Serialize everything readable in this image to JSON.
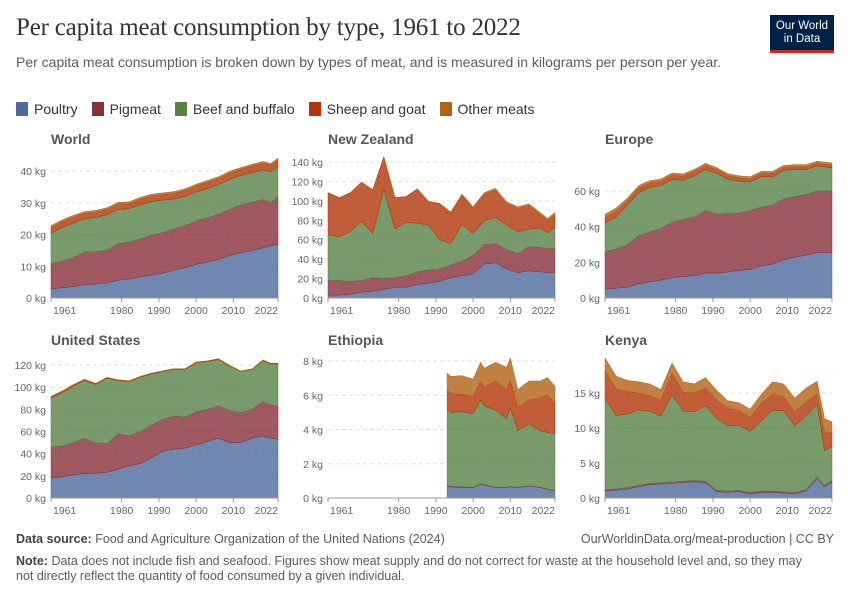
{
  "header": {
    "title": "Per capita meat consumption by type, 1961 to 2022",
    "subtitle": "Per capita meat consumption is broken down by types of meat, and is measured in kilograms per person per year.",
    "logo_text": "Our World in Data"
  },
  "footer": {
    "source_label": "Data source:",
    "source_text": "Food and Agriculture Organization of the United Nations (2024)",
    "url": "OurWorldinData.org/meat-production | CC BY",
    "note_label": "Note:",
    "note_text": "Data does not include fish and seafood. Figures show meat supply and do not correct for waste at the household level and, so they may not directly reflect the quantity of food consumed by a given individual."
  },
  "colors": {
    "Poultry": "#4c6a9c",
    "Pigmeat": "#883039",
    "Beef and buffalo": "#578145",
    "Sheep and goat": "#b13507",
    "Other meats": "#b16214"
  },
  "chart_data": {
    "type": "area",
    "stacked": true,
    "unit": "kg",
    "legend": [
      "Poultry",
      "Pigmeat",
      "Beef and buffalo",
      "Sheep and goat",
      "Other meats"
    ],
    "legend_placement": "top-left",
    "xlim": [
      1961,
      2022
    ],
    "x_ticks": [
      1961,
      1980,
      1990,
      2000,
      2010,
      2022
    ],
    "grid": "horizontal dashed",
    "panels": [
      {
        "title": "World",
        "y_ticks": [
          0,
          10,
          20,
          30,
          40
        ],
        "years": [
          1961,
          1964,
          1967,
          1970,
          1973,
          1976,
          1979,
          1982,
          1985,
          1988,
          1991,
          1994,
          1997,
          2000,
          2003,
          2006,
          2009,
          2012,
          2015,
          2018,
          2020,
          2022
        ],
        "series": [
          {
            "name": "Poultry",
            "values": [
              2.9,
              3.2,
              3.6,
              4.2,
              4.4,
              4.8,
              5.6,
              6.0,
              6.6,
              7.2,
              7.8,
              8.8,
              9.6,
              10.6,
              11.3,
              12.2,
              13.4,
              14.3,
              15.0,
              15.8,
              16.5,
              16.9
            ]
          },
          {
            "name": "Pigmeat",
            "values": [
              7.9,
              8.5,
              9.2,
              10.2,
              10.2,
              10.2,
              11.5,
              11.6,
              12.0,
              12.6,
              12.8,
              13.0,
              13.2,
              13.6,
              14.0,
              14.2,
              14.6,
              15.0,
              15.2,
              15.2,
              13.5,
              15.0
            ]
          },
          {
            "name": "Beef and buffalo",
            "values": [
              9.5,
              10.5,
              10.8,
              10.5,
              10.8,
              11.2,
              10.8,
              10.5,
              10.8,
              10.6,
              10.2,
              9.4,
              9.2,
              9.2,
              9.2,
              9.3,
              9.4,
              9.3,
              9.3,
              9.4,
              9.8,
              9.4
            ]
          },
          {
            "name": "Sheep and goat",
            "values": [
              1.8,
              1.8,
              1.8,
              1.7,
              1.6,
              1.6,
              1.6,
              1.6,
              1.7,
              1.7,
              1.7,
              1.7,
              1.8,
              1.8,
              1.9,
              1.9,
              1.9,
              1.9,
              2.0,
              2.0,
              2.0,
              2.1
            ]
          },
          {
            "name": "Other meats",
            "values": [
              0.7,
              0.6,
              0.6,
              0.6,
              0.6,
              0.6,
              0.6,
              0.6,
              0.6,
              0.6,
              0.6,
              0.6,
              0.6,
              0.6,
              0.6,
              0.6,
              0.6,
              0.6,
              0.6,
              0.6,
              0.6,
              0.6
            ]
          }
        ]
      },
      {
        "title": "New Zealand",
        "y_ticks": [
          0,
          20,
          40,
          60,
          80,
          100,
          120,
          140
        ],
        "years": [
          1961,
          1964,
          1967,
          1970,
          1973,
          1976,
          1979,
          1982,
          1985,
          1988,
          1991,
          1994,
          1997,
          2000,
          2003,
          2006,
          2009,
          2012,
          2015,
          2018,
          2020,
          2022
        ],
        "series": [
          {
            "name": "Poultry",
            "values": [
              3,
              3,
              4,
              6,
              7,
              9,
              11,
              11,
              14,
              15,
              17,
              21,
              23,
              25,
              35,
              36,
              30,
              26,
              28,
              27,
              26,
              26
            ]
          },
          {
            "name": "Pigmeat",
            "values": [
              15,
              15,
              13,
              12,
              14,
              11,
              10,
              12,
              13,
              14,
              13,
              13,
              15,
              19,
              20,
              20,
              20,
              20,
              25,
              25,
              25,
              25
            ]
          },
          {
            "name": "Beef and buffalo",
            "values": [
              47,
              45,
              51,
              61,
              45,
              92,
              50,
              55,
              50,
              46,
              30,
              22,
              38,
              22,
              25,
              27,
              25,
              22,
              18,
              20,
              16,
              22
            ]
          },
          {
            "name": "Sheep and goat",
            "values": [
              43,
              40,
              40,
              40,
              45,
              33,
              32,
              26,
              35,
              24,
              37,
              32,
              30,
              27,
              27,
              28,
              22,
              24,
              24,
              14,
              13,
              13
            ]
          },
          {
            "name": "Other meats",
            "values": [
              0.5,
              0.5,
              0.5,
              0.5,
              0.5,
              0.5,
              0.5,
              0.5,
              0.5,
              0.5,
              0.5,
              0.5,
              1,
              1,
              1.5,
              2,
              2,
              2,
              2,
              2,
              2,
              2
            ]
          }
        ]
      },
      {
        "title": "Europe",
        "y_ticks": [
          0,
          20,
          40,
          60
        ],
        "years": [
          1961,
          1964,
          1967,
          1970,
          1973,
          1976,
          1979,
          1982,
          1985,
          1988,
          1991,
          1994,
          1997,
          2000,
          2003,
          2006,
          2009,
          2012,
          2015,
          2018,
          2020,
          2022
        ],
        "series": [
          {
            "name": "Poultry",
            "values": [
              5,
              5.5,
              6,
              8,
              9,
              10,
              11.5,
              12,
              12.5,
              14,
              14,
              14.5,
              15.5,
              16,
              18,
              19,
              21.5,
              23,
              24,
              25.5,
              25.5,
              25.5
            ]
          },
          {
            "name": "Pigmeat",
            "values": [
              21,
              22,
              24,
              27,
              28,
              29,
              31,
              32,
              33,
              35,
              33,
              33,
              32,
              33,
              33,
              33,
              34,
              34,
              34,
              34.5,
              34.5,
              34.5
            ]
          },
          {
            "name": "Beef and buffalo",
            "values": [
              16,
              18,
              22,
              24,
              25,
              24,
              24,
              22,
              23,
              23,
              23,
              19,
              18,
              16,
              17,
              16,
              16,
              15,
              14,
              14,
              13.5,
              13
            ]
          },
          {
            "name": "Sheep and goat",
            "values": [
              3,
              3,
              2.5,
              2.5,
              2.3,
              2.3,
              2.3,
              2.3,
              2.3,
              2.3,
              2,
              2,
              1.8,
              1.8,
              1.8,
              1.8,
              1.6,
              1.6,
              1.6,
              1.5,
              1.5,
              1.5
            ]
          },
          {
            "name": "Other meats",
            "values": [
              2,
              2,
              1.5,
              1.5,
              1.5,
              1.4,
              1.3,
              1.3,
              1.3,
              1.3,
              1.2,
              1.2,
              1.2,
              1.2,
              1.2,
              1.2,
              1.2,
              1.2,
              1.2,
              1.2,
              1.2,
              1.2
            ]
          }
        ]
      },
      {
        "title": "United States",
        "y_ticks": [
          0,
          20,
          40,
          60,
          80,
          100,
          120
        ],
        "years": [
          1961,
          1964,
          1967,
          1970,
          1973,
          1976,
          1979,
          1982,
          1985,
          1988,
          1991,
          1994,
          1997,
          2000,
          2003,
          2006,
          2009,
          2012,
          2015,
          2018,
          2020,
          2022
        ],
        "series": [
          {
            "name": "Poultry",
            "values": [
              18,
              19,
              21,
              22,
              22.5,
              23,
              26,
              29,
              31,
              36,
              42,
              44,
              45,
              48,
              51,
              54,
              50,
              50,
              54,
              56,
              54,
              53
            ]
          },
          {
            "name": "Pigmeat",
            "values": [
              28,
              28,
              29,
              32,
              27,
              26,
              32,
              27,
              29,
              30,
              29,
              30,
              28,
              30,
              29,
              29,
              29,
              27,
              26,
              31,
              30,
              30
            ]
          },
          {
            "name": "Beef and buffalo",
            "values": [
              44,
              48,
              51,
              52,
              53,
              59,
              48,
              49,
              49,
              46,
              43,
              42,
              43,
              44,
              43,
              42,
              40,
              37,
              36,
              37,
              37,
              38
            ]
          },
          {
            "name": "Sheep and goat",
            "values": [
              1.5,
              1.3,
              1.0,
              0.9,
              0.7,
              0.6,
              0.5,
              0.5,
              0.5,
              0.5,
              0.5,
              0.5,
              0.5,
              0.5,
              0.5,
              0.5,
              0.5,
              0.4,
              0.4,
              0.4,
              0.4,
              0.4
            ]
          },
          {
            "name": "Other meats",
            "values": [
              0.3,
              0.3,
              0.3,
              0.3,
              0.2,
              0.2,
              0.2,
              0.2,
              0.2,
              0.2,
              0.2,
              0.2,
              0.2,
              0.2,
              0.2,
              0.2,
              0.2,
              0.2,
              0.2,
              0.2,
              0.2,
              0.2
            ]
          }
        ]
      },
      {
        "title": "Ethiopia",
        "y_ticks": [
          0,
          2,
          4,
          6,
          8
        ],
        "years": [
          1993,
          1994,
          1997,
          2000,
          2002,
          2003,
          2006,
          2009,
          2010,
          2012,
          2015,
          2018,
          2020,
          2022
        ],
        "series": [
          {
            "name": "Poultry",
            "values": [
              0.7,
              0.65,
              0.6,
              0.6,
              0.8,
              0.75,
              0.6,
              0.6,
              0.65,
              0.6,
              0.7,
              0.6,
              0.5,
              0.4
            ]
          },
          {
            "name": "Pigmeat",
            "values": [
              0.05,
              0.05,
              0.05,
              0.03,
              0.03,
              0.03,
              0.03,
              0.03,
              0.03,
              0.03,
              0.03,
              0.03,
              0.03,
              0.03
            ]
          },
          {
            "name": "Beef and buffalo",
            "values": [
              4.4,
              4.3,
              4.4,
              4.3,
              4.9,
              4.6,
              4.5,
              4.0,
              4.6,
              3.3,
              3.6,
              3.3,
              3.3,
              3.3
            ]
          },
          {
            "name": "Sheep and goat",
            "values": [
              1.15,
              1.1,
              1.0,
              1.0,
              1.1,
              1.1,
              1.7,
              1.7,
              1.6,
              1.4,
              1.4,
              1.9,
              2.2,
              1.8
            ]
          },
          {
            "name": "Other meats",
            "values": [
              1.0,
              1.0,
              1.1,
              1.0,
              1.1,
              1.1,
              1.1,
              1.3,
              1.3,
              1.0,
              1.1,
              1.0,
              1.0,
              1.0
            ]
          }
        ]
      },
      {
        "title": "Kenya",
        "y_ticks": [
          0,
          5,
          10,
          15
        ],
        "years": [
          1961,
          1964,
          1967,
          1970,
          1973,
          1976,
          1979,
          1982,
          1985,
          1988,
          1991,
          1994,
          1997,
          2000,
          2003,
          2006,
          2009,
          2012,
          2015,
          2018,
          2020,
          2022
        ],
        "series": [
          {
            "name": "Poultry",
            "values": [
              1.0,
              1.1,
              1.3,
              1.6,
              1.9,
              2.0,
              2.1,
              2.2,
              2.3,
              2.2,
              0.9,
              0.8,
              0.9,
              0.6,
              0.8,
              0.8,
              0.7,
              0.6,
              1.0,
              2.8,
              1.6,
              2.3
            ]
          },
          {
            "name": "Pigmeat",
            "values": [
              0.2,
              0.2,
              0.2,
              0.2,
              0.2,
              0.2,
              0.2,
              0.2,
              0.2,
              0.2,
              0.2,
              0.2,
              0.2,
              0.2,
              0.2,
              0.2,
              0.2,
              0.2,
              0.2,
              0.2,
              0.2,
              0.2
            ]
          },
          {
            "name": "Beef and buffalo",
            "values": [
              13,
              10.5,
              10.5,
              10.8,
              10.3,
              9.5,
              12.5,
              10.0,
              9.8,
              10.8,
              10.3,
              9.3,
              9.3,
              8.7,
              10.0,
              11.5,
              11.6,
              9.5,
              10.5,
              10.4,
              5.0,
              4.8
            ]
          },
          {
            "name": "Sheep and goat",
            "values": [
              4,
              3.8,
              3.2,
              2.4,
              2.2,
              2.3,
              3.0,
              2.7,
              2.7,
              2.5,
              2.6,
              2.5,
              2.1,
              2.0,
              2.5,
              2.3,
              2.0,
              2.0,
              2.0,
              1.5,
              2.5,
              2.0
            ]
          },
          {
            "name": "Other meats",
            "values": [
              1.8,
              1.8,
              1.6,
              1.6,
              1.7,
              1.5,
              1.5,
              1.5,
              1.3,
              1.5,
              1.4,
              1.1,
              1.1,
              1.2,
              1.3,
              1.8,
              1.8,
              2.0,
              2.0,
              1.8,
              2.0,
              1.6
            ]
          }
        ]
      }
    ]
  }
}
